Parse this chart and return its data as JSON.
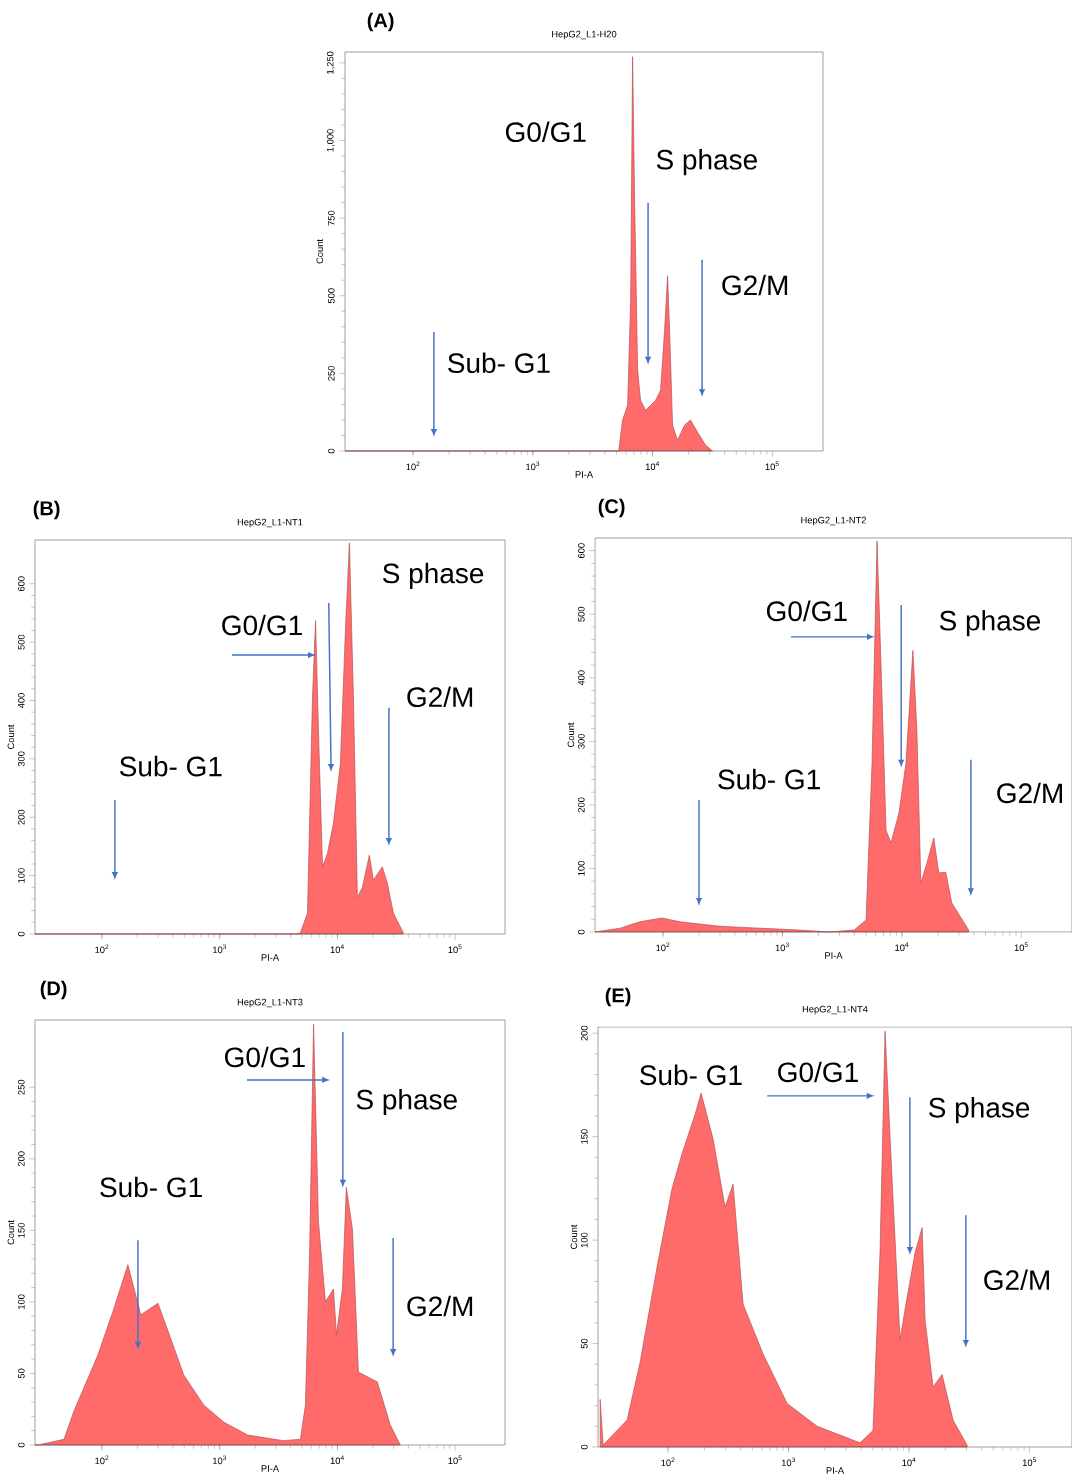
{
  "chart_data": [
    {
      "type": "area",
      "subtitle": "(A)",
      "title": "HepG2_L1-H20",
      "xlabel": "PI-A",
      "ylabel": "Count",
      "color": "#ff6b6b",
      "log": "x",
      "x": [
        27,
        5210,
        5620,
        6190,
        6560,
        6810,
        7080,
        7500,
        7940,
        8750,
        9620,
        10590,
        11660,
        12590,
        13340,
        13870,
        14680,
        16160,
        18480,
        20730,
        23710,
        27660,
        31620
      ],
      "values": [
        0,
        0,
        100,
        147,
        484,
        1270,
        805,
        260,
        163,
        131,
        147,
        163,
        196,
        388,
        564,
        388,
        83,
        35,
        83,
        100,
        61,
        19,
        0
      ],
      "xlim": [
        27,
        265000
      ],
      "ylim": [
        0,
        1285
      ],
      "xticks": [
        {
          "value": 100,
          "label": "10$^{2}$"
        },
        {
          "value": 1000,
          "label": "10$^{3}$"
        },
        {
          "value": 10000,
          "label": "10$^{4}$"
        },
        {
          "value": 100000,
          "label": "10$^{5}$"
        }
      ],
      "yticks": [
        0,
        250,
        500,
        750,
        {
          "value": 1000,
          "label": "1,000"
        },
        {
          "value": 1250,
          "label": "1,250"
        }
      ],
      "annotations": [
        "G0/G1",
        "S phase",
        "G2/M",
        "Sub- G1"
      ]
    },
    {
      "type": "area",
      "subtitle": "(B)",
      "title": "HepG2_L1-NT1",
      "xlabel": "PI-A",
      "ylabel": "Count",
      "color": "#ff6b6b",
      "log": "x",
      "x": [
        27,
        4500,
        4850,
        5570,
        6140,
        6520,
        6900,
        7470,
        8230,
        9250,
        10600,
        11690,
        12640,
        13670,
        14770,
        16300,
        18670,
        20180,
        24060,
        26540,
        29850,
        36230
      ],
      "values": [
        0,
        0,
        2,
        36,
        405,
        537,
        349,
        115,
        138,
        190,
        292,
        520,
        670,
        405,
        63,
        80,
        135,
        92,
        115,
        87,
        36,
        2
      ],
      "xlim": [
        27,
        265000
      ],
      "ylim": [
        0,
        675
      ],
      "xticks": [
        {
          "value": 100,
          "label": "10$^{2}$"
        },
        {
          "value": 1000,
          "label": "10$^{3}$"
        },
        {
          "value": 10000,
          "label": "10$^{4}$"
        },
        {
          "value": 100000,
          "label": "10$^{5}$"
        }
      ],
      "yticks": [
        0,
        100,
        200,
        300,
        400,
        500,
        600
      ],
      "annotations": [
        "S phase",
        "G0/G1",
        "G2/M",
        "Sub- G1"
      ]
    },
    {
      "type": "area",
      "subtitle": "(C)",
      "title": "HepG2_L1-NT2",
      "xlabel": "PI-A",
      "ylabel": "Count",
      "color": "#ff6b6b",
      "log": "x",
      "x": [
        27,
        43.8,
        64,
        98,
        139,
        299,
        643,
        1387,
        2464,
        3980,
        5010,
        5620,
        6190,
        6680,
        7360,
        8100,
        9440,
        10800,
        12350,
        13340,
        14400,
        16160,
        18480,
        20330,
        23270,
        26100,
        36140
      ],
      "values": [
        0,
        6,
        16,
        22,
        16,
        9,
        6,
        3,
        0,
        3,
        19,
        265,
        615,
        422,
        160,
        140,
        187,
        265,
        443,
        317,
        77,
        108,
        148,
        93,
        94,
        46,
        3
      ],
      "xlim": [
        27,
        265000
      ],
      "ylim": [
        0,
        620
      ],
      "xticks": [
        {
          "value": 100,
          "label": "10$^{2}$"
        },
        {
          "value": 1000,
          "label": "10$^{3}$"
        },
        {
          "value": 10000,
          "label": "10$^{4}$"
        },
        {
          "value": 100000,
          "label": "10$^{5}$"
        }
      ],
      "yticks": [
        0,
        100,
        200,
        300,
        400,
        500,
        600
      ],
      "annotations": [
        "G0/G1",
        "S phase",
        "Sub- G1",
        "G2/M"
      ]
    },
    {
      "type": "area",
      "subtitle": "(D)",
      "title": "HepG2_L1-NT3",
      "xlabel": "PI-A",
      "ylabel": "Count",
      "color": "#ff6b6b",
      "log": "x",
      "x": [
        27,
        28.7,
        47.6,
        58,
        92.5,
        126,
        166,
        214,
        299,
        385,
        495,
        731,
        1080,
        1726,
        3480,
        4850,
        5350,
        5800,
        6270,
        6900,
        7910,
        9250,
        9820,
        11020,
        11910,
        13400,
        15070,
        21830,
        28120,
        34200
      ],
      "values": [
        0,
        0,
        4,
        24,
        63,
        95,
        126,
        91,
        99,
        74,
        49,
        28,
        16,
        7,
        3,
        4,
        28,
        133,
        294,
        156,
        100,
        109,
        77,
        109,
        180,
        151,
        51,
        44,
        14,
        0
      ],
      "xlim": [
        27,
        265000
      ],
      "ylim": [
        0,
        297
      ],
      "xticks": [
        {
          "value": 100,
          "label": "10$^{2}$"
        },
        {
          "value": 1000,
          "label": "10$^{3}$"
        },
        {
          "value": 10000,
          "label": "10$^{4}$"
        },
        {
          "value": 100000,
          "label": "10$^{5}$"
        }
      ],
      "yticks": [
        0,
        50,
        100,
        150,
        200,
        250
      ],
      "annotations": [
        "G0/G1",
        "S phase",
        "Sub- G1",
        "G2/M"
      ]
    },
    {
      "type": "area",
      "subtitle": "(E)",
      "title": "HepG2_L1-NT4",
      "xlabel": "PI-A",
      "ylabel": "Count",
      "color": "#ff6b6b",
      "log": "x",
      "x": [
        27.3,
        28.9,
        45.7,
        58.6,
        81,
        108,
        131,
        168,
        188,
        236,
        297,
        346,
        419,
        614,
        973,
        1726,
        3920,
        5020,
        5740,
        6320,
        7230,
        8410,
        9620,
        11220,
        12830,
        13590,
        15820,
        18790,
        23170,
        30270
      ],
      "values": [
        23,
        1,
        13,
        41,
        87,
        125,
        142,
        161,
        171,
        149,
        116,
        127,
        69,
        45,
        21,
        10,
        2,
        8,
        94,
        201,
        129,
        52,
        72,
        94,
        106,
        61,
        29,
        35,
        13,
        1
      ],
      "xlim": [
        26.2,
        225000
      ],
      "ylim": [
        0,
        203
      ],
      "xticks": [
        {
          "value": 100,
          "label": "10$^{2}$"
        },
        {
          "value": 1000,
          "label": "10$^{3}$"
        },
        {
          "value": 10000,
          "label": "10$^{4}$"
        },
        {
          "value": 100000,
          "label": "10$^{5}$"
        }
      ],
      "yticks": [
        0,
        50,
        100,
        150,
        200
      ],
      "annotations": [
        "Sub- G1",
        "G0/G1",
        "S phase",
        "G2/M"
      ]
    }
  ]
}
